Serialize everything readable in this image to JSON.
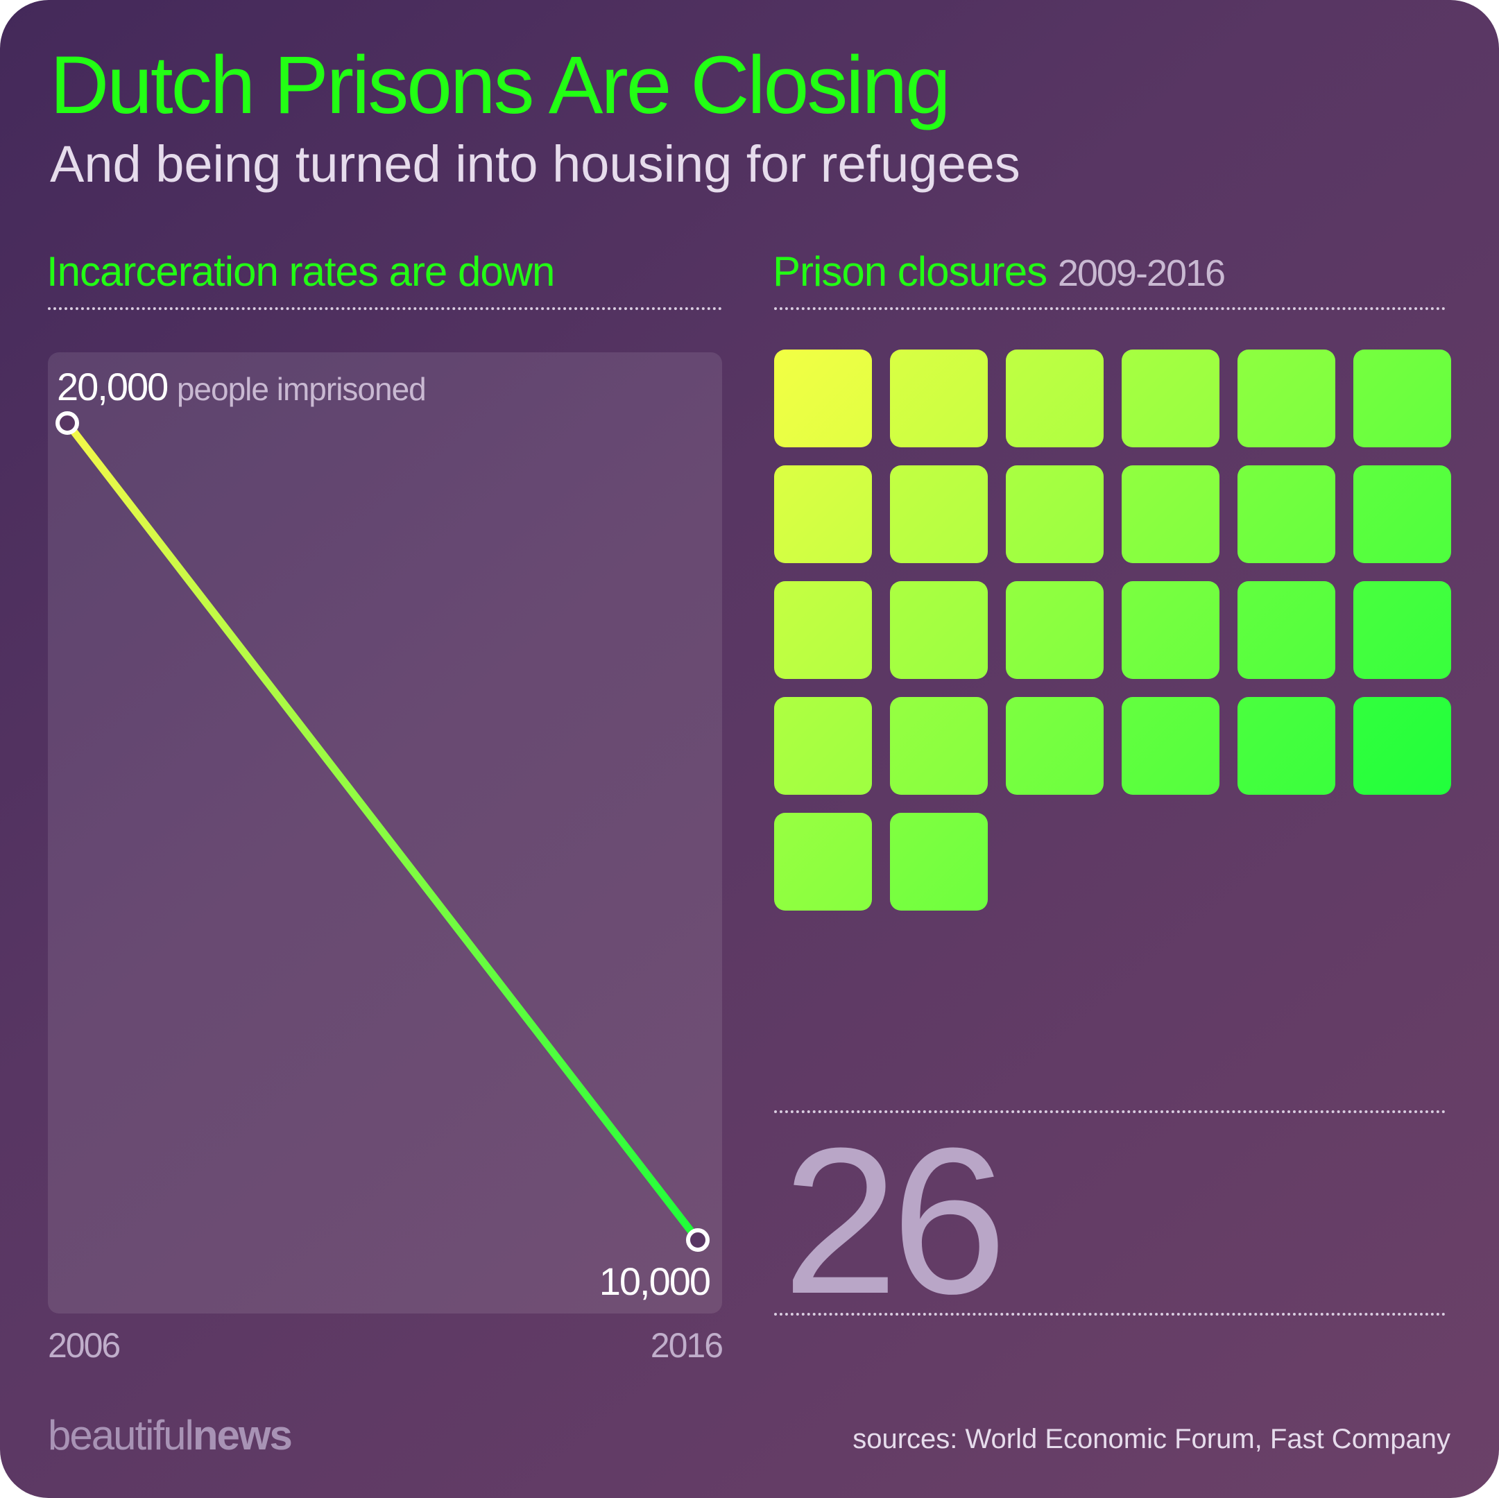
{
  "header": {
    "title": "Dutch Prisons Are Closing",
    "subtitle": "And being turned into housing for refugees"
  },
  "left_section": {
    "heading": "Incarceration rates are down",
    "top_value": "20,000",
    "top_unit": "people imprisoned",
    "bottom_value": "10,000",
    "x_start_label": "2006",
    "x_end_label": "2016"
  },
  "right_section": {
    "heading": "Prison closures",
    "heading_range": "2009-2016",
    "total": "26"
  },
  "footer": {
    "brand_light": "beautiful",
    "brand_bold": "news",
    "sources": "sources: World Economic Forum, Fast Company"
  },
  "colors": {
    "accent": "#22ff14",
    "line_start": "#f4f84a",
    "line_end": "#1eff3a",
    "grid_start": "#f2ff44",
    "grid_end": "#1cff3c"
  },
  "chart_data": [
    {
      "type": "line",
      "title": "Incarceration rates are down",
      "x": [
        2006,
        2016
      ],
      "series": [
        {
          "values": [
            20000,
            10000
          ]
        }
      ],
      "xlabel": "",
      "ylabel": "",
      "ylim": [
        10000,
        20000
      ],
      "data_labels": [
        "20,000",
        "10,000"
      ],
      "grid": false
    },
    {
      "type": "waffle",
      "title": "Prison closures 2009-2016",
      "count": 26,
      "columns": 6
    }
  ]
}
